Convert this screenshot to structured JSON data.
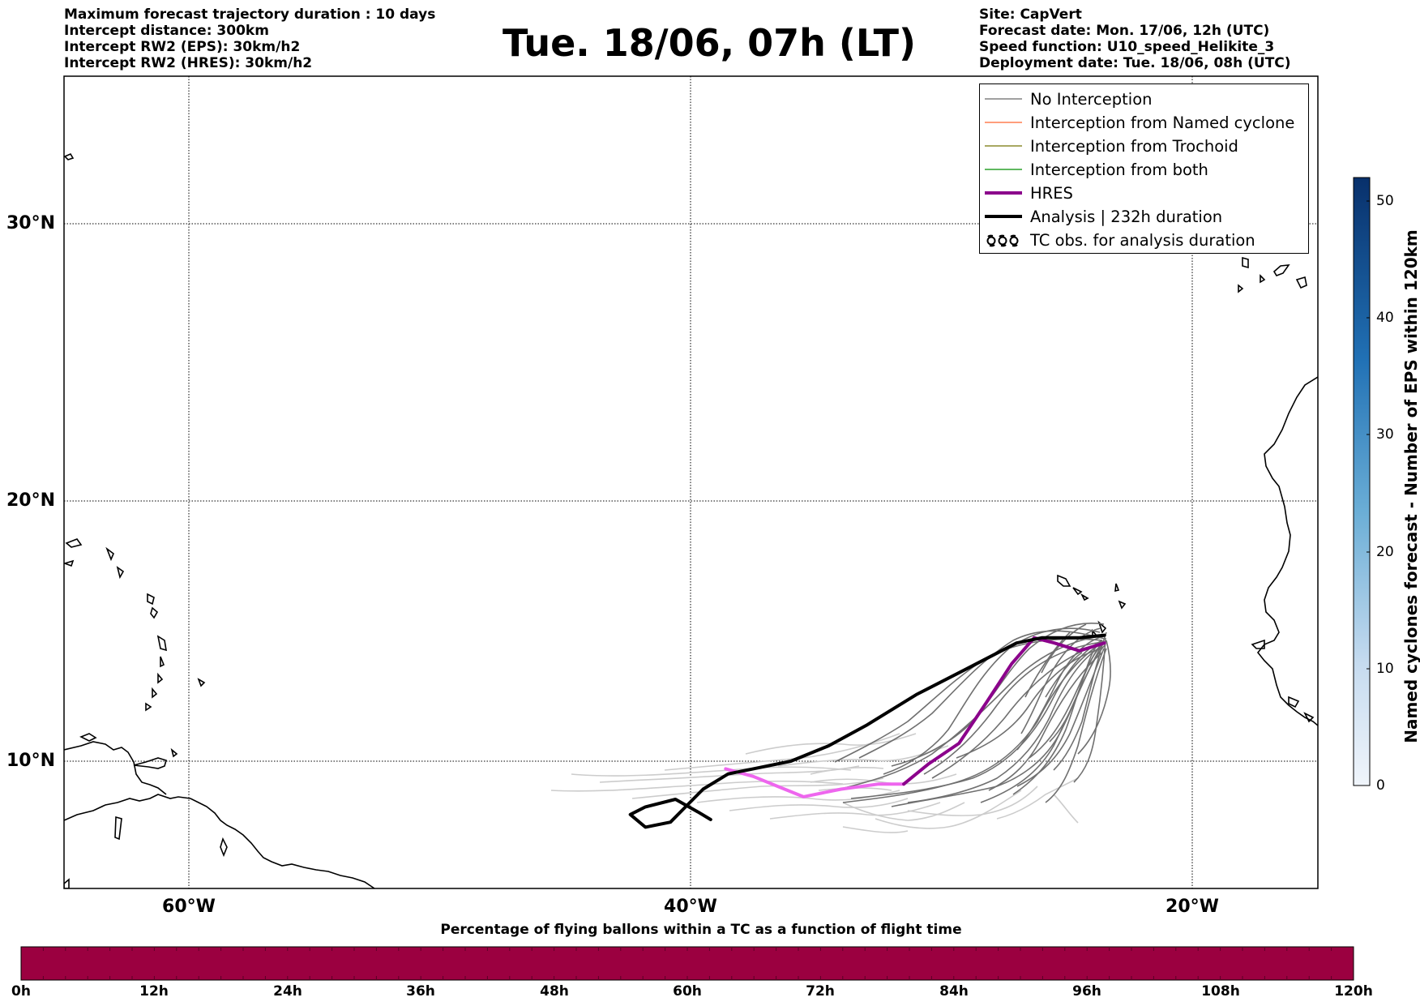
{
  "header": {
    "left": [
      "Maximum forecast trajectory duration : 10 days",
      "Intercept distance: 300km",
      "Intercept RW2 (EPS):  30km/h2",
      "Intercept RW2 (HRES): 30km/h2"
    ],
    "title": "Tue. 18/06, 07h (LT)",
    "right": [
      "Site: CapVert",
      "Forecast date: Mon. 17/06, 12h (UTC)",
      "Speed function: U10_speed_Helikite_3",
      "Deployment date: Tue. 18/06, 08h (UTC)"
    ]
  },
  "map": {
    "lat_labels": [
      "30°N",
      "20°N",
      "10°N"
    ],
    "lon_labels": [
      "60°W",
      "40°W",
      "20°W"
    ],
    "grid": true,
    "extent": {
      "lon": [
        -65,
        -15
      ],
      "lat": [
        5.2,
        36.5
      ]
    },
    "site": {
      "name": "CapVert",
      "lon": -23.5,
      "lat": 14.9
    }
  },
  "legend": {
    "items": [
      {
        "label": "No Interception",
        "color": "#808080",
        "style": "thin"
      },
      {
        "label": "Interception from Named cyclone",
        "color": "#ff7f50",
        "style": "thin"
      },
      {
        "label": "Interception from Trochoid",
        "color": "#8b8b2e",
        "style": "thin"
      },
      {
        "label": "Interception from both",
        "color": "#2ca02c",
        "style": "thin"
      },
      {
        "label": "HRES",
        "color": "#8b008b",
        "style": "thick"
      },
      {
        "label": "Analysis | 232h duration",
        "color": "#000000",
        "style": "thick"
      },
      {
        "label": "TC obs. for analysis duration",
        "color": "#000000",
        "style": "symbol"
      }
    ]
  },
  "colorbar": {
    "label": "Named cyclones forecast - Number of EPS within 120km",
    "ticks": [
      "0",
      "10",
      "20",
      "30",
      "40",
      "50"
    ],
    "range": [
      0,
      52
    ],
    "colors": [
      "#f0f5fb",
      "#08306b"
    ]
  },
  "bottom_bar": {
    "title": "Percentage of flying ballons within a TC as a function of flight time",
    "ticks": [
      "0h",
      "12h",
      "24h",
      "36h",
      "48h",
      "60h",
      "72h",
      "84h",
      "96h",
      "108h",
      "120h"
    ],
    "color": "#9b0040"
  },
  "tracks": {
    "analysis": [
      [
        -23.5,
        14.9
      ],
      [
        -24.5,
        14.8
      ],
      [
        -26,
        14.8
      ],
      [
        -27,
        14.6
      ],
      [
        -29,
        13.6
      ],
      [
        -31,
        12.6
      ],
      [
        -33,
        11.4
      ],
      [
        -34.5,
        10.6
      ],
      [
        -36,
        10.0
      ],
      [
        -37.5,
        9.7
      ],
      [
        -38.5,
        9.5
      ],
      [
        -39.5,
        8.9
      ],
      [
        -40.3,
        8.1
      ],
      [
        -40.8,
        7.6
      ],
      [
        -41.8,
        7.4
      ],
      [
        -42.4,
        7.9
      ],
      [
        -41.8,
        8.2
      ],
      [
        -40.6,
        8.5
      ],
      [
        -39.7,
        8.0
      ],
      [
        -39.2,
        7.7
      ]
    ],
    "hres_pink": [
      [
        -31.5,
        9.1
      ],
      [
        -32.5,
        9.1
      ],
      [
        -34,
        8.9
      ],
      [
        -35.5,
        8.6
      ],
      [
        -36.5,
        9.0
      ],
      [
        -37.5,
        9.4
      ],
      [
        -38.6,
        9.7
      ]
    ],
    "hres_purple": [
      [
        -23.5,
        14.6
      ],
      [
        -24.5,
        14.3
      ],
      [
        -25.5,
        14.6
      ],
      [
        -26.3,
        14.8
      ],
      [
        -27.2,
        13.8
      ],
      [
        -28.2,
        12.3
      ],
      [
        -29.3,
        10.7
      ],
      [
        -30.5,
        9.9
      ],
      [
        -31.5,
        9.1
      ]
    ]
  }
}
